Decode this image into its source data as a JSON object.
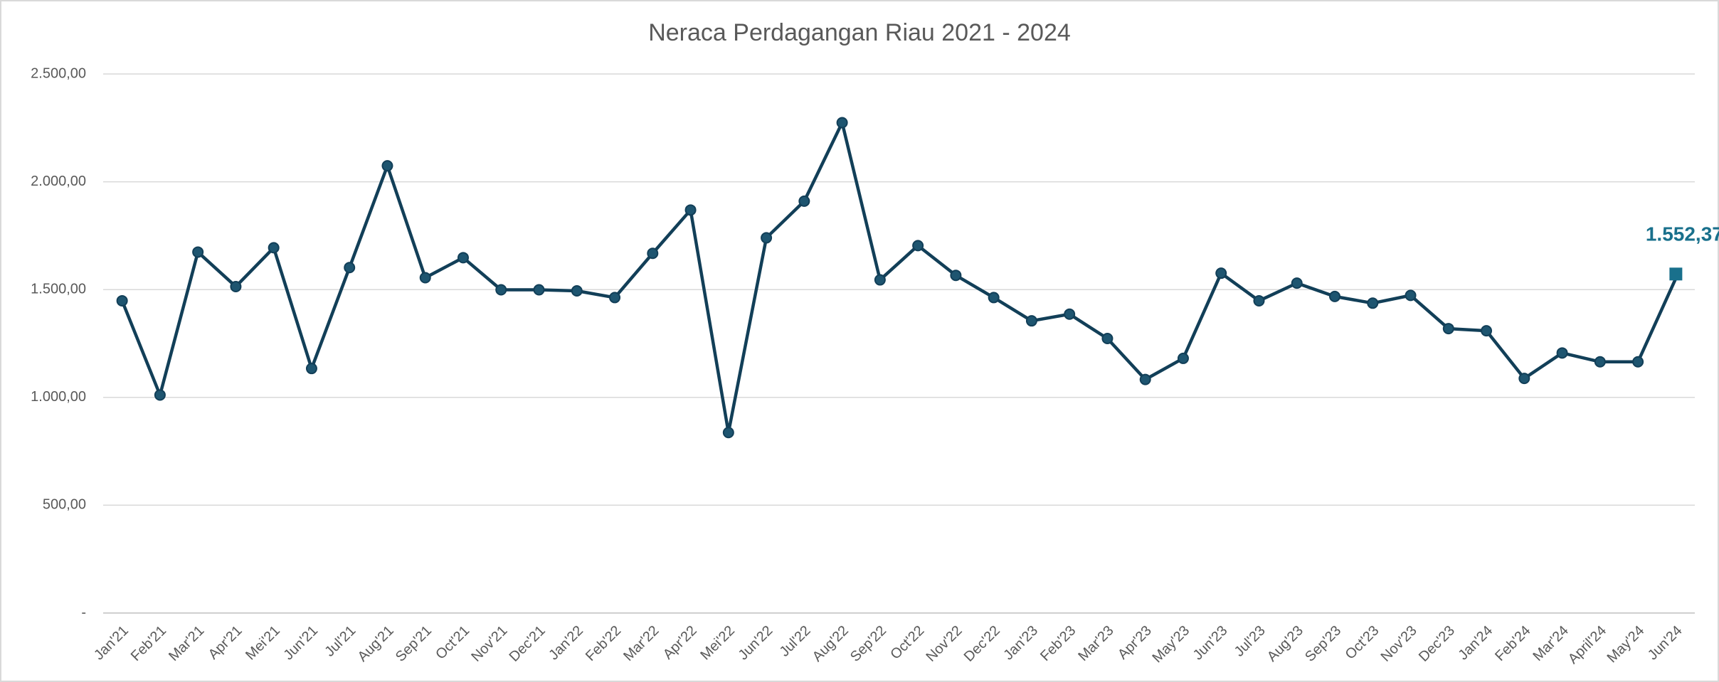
{
  "chart_data": {
    "type": "line",
    "title": "Neraca Perdagangan Riau 2021 - 2024",
    "categories": [
      "Jan'21",
      "Feb'21",
      "Mar'21",
      "Apr'21",
      "Mei'21",
      "Jun'21",
      "Jul'21",
      "Aug'21",
      "Sep'21",
      "Oct'21",
      "Nov'21",
      "Dec'21",
      "Jan'22",
      "Feb'22",
      "Mar'22",
      "Apr'22",
      "Mei'22",
      "Jun'22",
      "Jul'22",
      "Aug'22",
      "Sep'22",
      "Oct'22",
      "Nov'22",
      "Dec'22",
      "Jan'23",
      "Feb'23",
      "Mar'23",
      "Apr'23",
      "May'23",
      "Jun'23",
      "Jul'23",
      "Aug'23",
      "Sep'23",
      "Oct'23",
      "Nov'23",
      "Dec'23",
      "Jan'24",
      "Feb'24",
      "Mar'24",
      "April'24",
      "May'24",
      "Jun'24"
    ],
    "series": [
      {
        "name": "Neraca Perdagangan",
        "color": "#123f58",
        "values": [
          1448,
          1011,
          1674,
          1514,
          1694,
          1134,
          1602,
          2074,
          1555,
          1648,
          1499,
          1499,
          1494,
          1463,
          1668,
          1869,
          837,
          1740,
          1910,
          2274,
          1545,
          1704,
          1566,
          1463,
          1355,
          1386,
          1273,
          1083,
          1181,
          1576,
          1448,
          1530,
          1468,
          1437,
          1473,
          1319,
          1309,
          1088,
          1206,
          1165,
          1165,
          1552.37
        ],
        "value_labels": [
          null,
          null,
          null,
          null,
          null,
          null,
          null,
          null,
          null,
          null,
          null,
          null,
          null,
          null,
          null,
          null,
          null,
          null,
          null,
          null,
          null,
          null,
          null,
          null,
          null,
          null,
          null,
          null,
          null,
          null,
          null,
          null,
          null,
          null,
          null,
          null,
          null,
          null,
          null,
          null,
          null,
          "1.552,37"
        ]
      }
    ],
    "ylim": [
      0,
      2500
    ],
    "yticks": [
      {
        "value": 0,
        "label": "-"
      },
      {
        "value": 500,
        "label": "500,00"
      },
      {
        "value": 1000,
        "label": "1.000,00"
      },
      {
        "value": 1500,
        "label": "1.500,00"
      },
      {
        "value": 2000,
        "label": "2.000,00"
      },
      {
        "value": 2500,
        "label": "2.500,00"
      }
    ],
    "grid": true
  }
}
